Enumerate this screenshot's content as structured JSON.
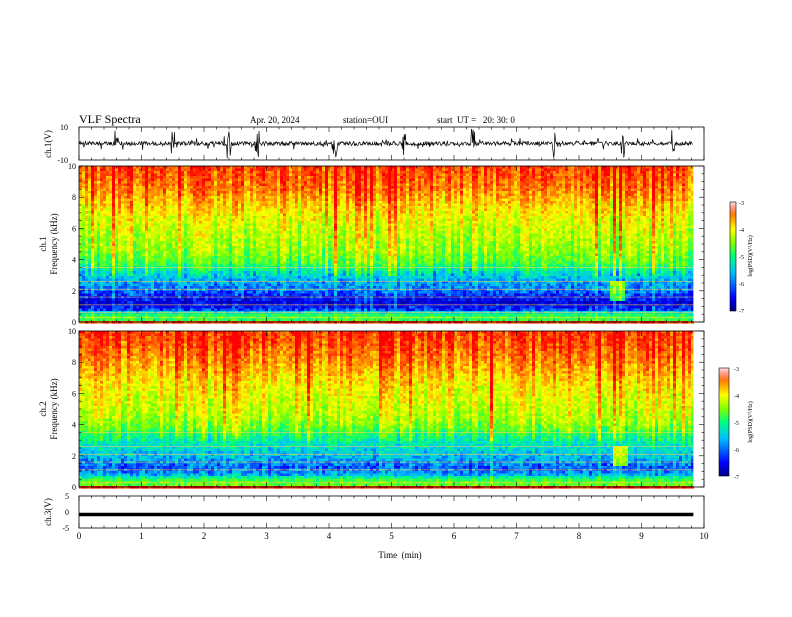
{
  "header": {
    "title": "VLF Spectra",
    "date": "Apr. 20, 2024",
    "station": "station=OUI",
    "start": "start  UT =   20: 30: 0"
  },
  "chart_data": [
    {
      "type": "line",
      "id": "ch1-waveform",
      "ylabel": "ch.1(V)",
      "ylim": [
        -10,
        10
      ],
      "yticks": [
        "10",
        "-10"
      ],
      "xlim": [
        0,
        10
      ],
      "x_extent_min": 9.83,
      "baseline_v": 0,
      "burst_spike_times_min": [
        0.6,
        1.5,
        2.4,
        2.85,
        4.1,
        5.2,
        6.3,
        7.6,
        8.7,
        9.5
      ]
    },
    {
      "type": "heatmap",
      "id": "ch1-spectrogram",
      "ylabel_top": "ch.1",
      "ylabel": "Frequency (kHz)",
      "ylim": [
        0,
        10
      ],
      "yticks": [
        "0",
        "2",
        "4",
        "6",
        "8",
        "10"
      ],
      "xlim": [
        0,
        10
      ],
      "x_extent_min": 9.83,
      "colorbar": {
        "label": "log(PSD)(V²/Hz)",
        "range": [
          -7,
          -3
        ],
        "ticks": [
          "-3",
          "-4",
          "-5",
          "-6",
          "-7"
        ]
      },
      "profile_kHz_logpsd": [
        [
          0.0,
          -5.2
        ],
        [
          0.4,
          -5.0
        ],
        [
          0.8,
          -6.3
        ],
        [
          1.2,
          -6.6
        ],
        [
          1.6,
          -6.4
        ],
        [
          2.0,
          -6.1
        ],
        [
          2.6,
          -5.9
        ],
        [
          3.2,
          -5.6
        ],
        [
          3.8,
          -5.0
        ],
        [
          4.5,
          -4.7
        ],
        [
          5.5,
          -4.5
        ],
        [
          6.5,
          -4.3
        ],
        [
          7.5,
          -4.0
        ],
        [
          8.5,
          -3.6
        ],
        [
          10.0,
          -3.3
        ]
      ],
      "interference_lines_kHz": [
        0.3,
        0.6,
        1.1,
        1.6,
        2.1,
        2.6,
        3.5
      ],
      "features": [
        {
          "time_min": 8.6,
          "freq_kHz": 2.0,
          "note": "brief enhancement"
        }
      ]
    },
    {
      "type": "heatmap",
      "id": "ch2-spectrogram",
      "ylabel_top": "ch.2",
      "ylabel": "Frequency (kHz)",
      "ylim": [
        0,
        10
      ],
      "yticks": [
        "0",
        "2",
        "4",
        "6",
        "8",
        "10"
      ],
      "xlim": [
        0,
        10
      ],
      "x_extent_min": 9.83,
      "colorbar": {
        "label": "log(PSD)(V²/Hz)",
        "range": [
          -7,
          -3
        ],
        "ticks": [
          "-3",
          "-4",
          "-5",
          "-6",
          "-7"
        ]
      },
      "profile_kHz_logpsd": [
        [
          0.0,
          -4.8
        ],
        [
          0.4,
          -4.9
        ],
        [
          0.8,
          -5.9
        ],
        [
          1.2,
          -6.2
        ],
        [
          1.6,
          -6.0
        ],
        [
          2.0,
          -5.8
        ],
        [
          2.6,
          -5.6
        ],
        [
          3.2,
          -5.3
        ],
        [
          3.8,
          -4.8
        ],
        [
          4.5,
          -4.5
        ],
        [
          5.5,
          -4.3
        ],
        [
          6.5,
          -4.1
        ],
        [
          7.5,
          -3.8
        ],
        [
          8.5,
          -3.5
        ],
        [
          10.0,
          -3.2
        ]
      ],
      "interference_lines_kHz": [
        0.3,
        1.1,
        1.6,
        2.1,
        2.6,
        3.5
      ],
      "features": [
        {
          "time_min": 8.65,
          "freq_kHz": 2.0,
          "note": "brief enhancement"
        }
      ]
    },
    {
      "type": "line",
      "id": "ch3-waveform",
      "ylabel": "ch.3(V)",
      "ylim": [
        -5,
        5
      ],
      "yticks": [
        "5",
        "0",
        "-5"
      ],
      "xlim": [
        0,
        10
      ],
      "x_extent_min": 9.83,
      "baseline_v": -0.8,
      "xlabel": "Time  (min)",
      "xticks": [
        "0",
        "1",
        "2",
        "3",
        "4",
        "5",
        "6",
        "7",
        "8",
        "9",
        "10"
      ]
    }
  ],
  "colors": {
    "colormap": [
      "#000080",
      "#0000ff",
      "#00bfff",
      "#00ff7f",
      "#7fff00",
      "#ffff00",
      "#ff8000",
      "#ff0000"
    ],
    "trace": "#000000"
  }
}
